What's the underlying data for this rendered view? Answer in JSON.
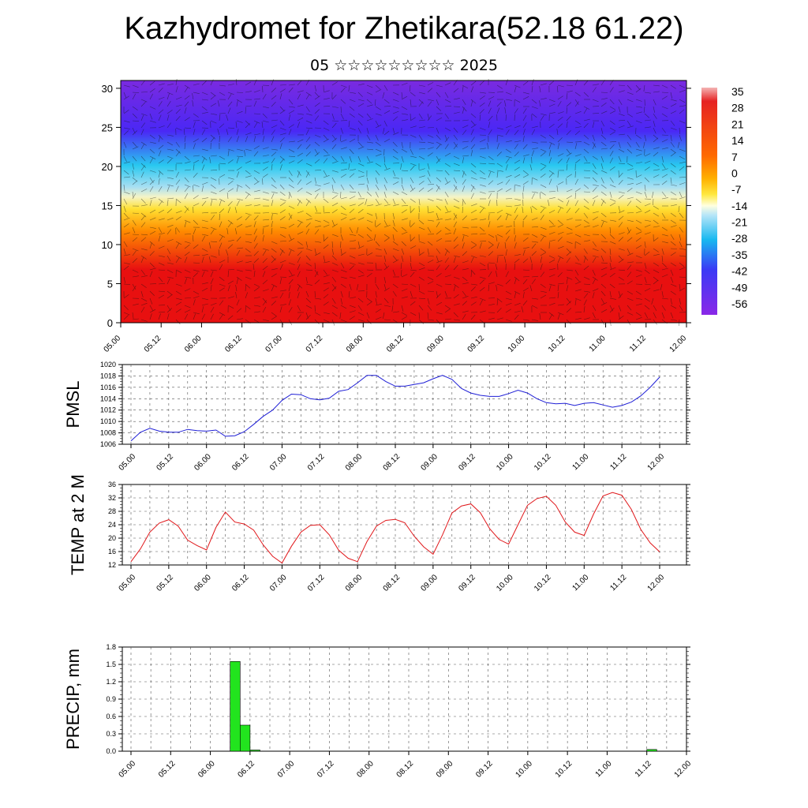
{
  "header": {
    "title": "Kazhydromet for Zhetikara(52.18 61.22)",
    "subtitle": "05 ☆☆☆☆☆☆☆☆☆ 2025"
  },
  "chart_data": [
    {
      "type": "heatmap",
      "name": "temperature-cross-section",
      "xlabel": "",
      "ylabel": "",
      "x_ticks": [
        "05.00",
        "05.12",
        "06.00",
        "06.12",
        "07.00",
        "07.12",
        "08.00",
        "08.12",
        "09.00",
        "09.12",
        "10.00",
        "10.12",
        "11.00",
        "11.12",
        "12.00"
      ],
      "y_ticks": [
        0,
        5,
        10,
        15,
        20,
        25,
        30
      ],
      "ylim": [
        0,
        31
      ],
      "colorbar_levels": [
        35,
        28,
        21,
        14,
        7,
        0,
        -7,
        -14,
        -21,
        -28,
        -35,
        -42,
        -49,
        -56
      ],
      "colors": {
        "hot": "#e81010",
        "warm": "#ff8c00",
        "mid": "#ffe033",
        "cool": "#28c8f0",
        "cold": "#4a28f5",
        "coldest": "#7a2ae0"
      }
    },
    {
      "type": "line",
      "name": "pmsl",
      "ylabel": "PMSL",
      "x_ticks": [
        "05.00",
        "05.12",
        "06.00",
        "06.12",
        "07.00",
        "07.12",
        "08.00",
        "08.12",
        "09.00",
        "09.12",
        "10.00",
        "10.12",
        "11.00",
        "11.12",
        "12.00"
      ],
      "y_ticks": [
        1006,
        1008,
        1010,
        1012,
        1014,
        1016,
        1018,
        1020
      ],
      "ylim": [
        1006,
        1020
      ],
      "x_hours": [
        0,
        3,
        6,
        9,
        12,
        15,
        18,
        21,
        24,
        27,
        30,
        33,
        36,
        39,
        42,
        45,
        48,
        51,
        54,
        57,
        60,
        63,
        66,
        69,
        72,
        75,
        78,
        81,
        84,
        87,
        90,
        93,
        96,
        99,
        102,
        105,
        108,
        111,
        114,
        117,
        120,
        123,
        126,
        129,
        132,
        135,
        138,
        141,
        144,
        147,
        150,
        153,
        156,
        159,
        162,
        165,
        168
      ],
      "values": [
        1006.6,
        1008.1,
        1008.8,
        1008.3,
        1008.1,
        1008.1,
        1008.6,
        1008.4,
        1008.3,
        1008.5,
        1007.4,
        1007.5,
        1008.2,
        1009.5,
        1010.9,
        1012.0,
        1013.7,
        1014.8,
        1014.7,
        1014.0,
        1013.8,
        1014.1,
        1015.3,
        1015.6,
        1016.8,
        1018.1,
        1018.1,
        1017.0,
        1016.2,
        1016.2,
        1016.5,
        1016.8,
        1017.5,
        1018.1,
        1017.4,
        1015.8,
        1015.0,
        1014.6,
        1014.4,
        1014.4,
        1014.9,
        1015.5,
        1015.0,
        1014.0,
        1013.3,
        1013.1,
        1013.2,
        1012.8,
        1013.2,
        1013.3,
        1012.9,
        1012.5,
        1012.8,
        1013.4,
        1014.5,
        1016.0,
        1017.8
      ],
      "color": "#1f1fd6"
    },
    {
      "type": "line",
      "name": "temp-2m",
      "ylabel": "TEMP at 2 M",
      "x_ticks": [
        "05.00",
        "05.12",
        "06.00",
        "06.12",
        "07.00",
        "07.12",
        "08.00",
        "08.12",
        "09.00",
        "09.12",
        "10.00",
        "10.12",
        "11.00",
        "11.12",
        "12.00"
      ],
      "y_ticks": [
        12,
        16,
        20,
        24,
        28,
        32,
        36
      ],
      "ylim": [
        12,
        36
      ],
      "x_hours": [
        0,
        3,
        6,
        9,
        12,
        15,
        18,
        21,
        24,
        27,
        30,
        33,
        36,
        39,
        42,
        45,
        48,
        51,
        54,
        57,
        60,
        63,
        66,
        69,
        72,
        75,
        78,
        81,
        84,
        87,
        90,
        93,
        96,
        99,
        102,
        105,
        108,
        111,
        114,
        117,
        120,
        123,
        126,
        129,
        132,
        135,
        138,
        141,
        144,
        147,
        150,
        153,
        156,
        159,
        162,
        165,
        168
      ],
      "values": [
        13.0,
        16.8,
        21.8,
        24.5,
        25.5,
        23.6,
        19.4,
        17.8,
        16.5,
        23.2,
        27.8,
        24.8,
        24.2,
        22.4,
        18.0,
        14.6,
        12.6,
        17.6,
        21.8,
        23.8,
        24.0,
        21.0,
        16.4,
        14.0,
        13.0,
        19.0,
        23.6,
        25.3,
        25.6,
        24.6,
        20.6,
        17.4,
        15.2,
        21.0,
        27.5,
        29.6,
        30.2,
        27.6,
        22.8,
        19.6,
        18.2,
        24.0,
        29.8,
        31.8,
        32.5,
        29.8,
        24.8,
        21.8,
        20.8,
        27.2,
        32.6,
        33.6,
        32.8,
        28.6,
        22.6,
        18.6,
        15.9
      ],
      "color": "#e0171a"
    },
    {
      "type": "bar",
      "name": "precip",
      "ylabel": "PRECIP, mm",
      "x_ticks": [
        "05.00",
        "05.12",
        "06.00",
        "06.12",
        "07.00",
        "07.12",
        "08.00",
        "08.12",
        "09.00",
        "09.12",
        "10.00",
        "10.12",
        "11.00",
        "11.12",
        "12.00"
      ],
      "y_ticks": [
        "0.0",
        "0.3",
        "0.6",
        "0.9",
        "1.2",
        "1.5",
        "1.8"
      ],
      "ylim": [
        0,
        1.8
      ],
      "x_hours": [
        30,
        33,
        36,
        156
      ],
      "values": [
        1.55,
        0.45,
        0.02,
        0.03
      ],
      "bar_width_hours": 3,
      "color": "#22e41e"
    }
  ]
}
